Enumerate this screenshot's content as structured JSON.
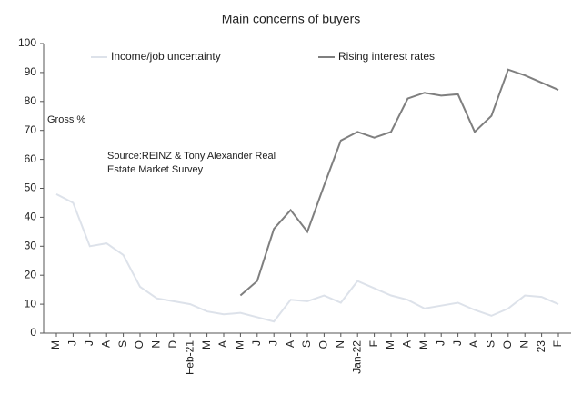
{
  "chart_data": {
    "type": "line",
    "title": "Main concerns of buyers",
    "categories": [
      "M",
      "J",
      "J",
      "A",
      "S",
      "O",
      "N",
      "D",
      "Feb-21",
      "M",
      "A",
      "M",
      "J",
      "J",
      "A",
      "S",
      "O",
      "N",
      "Jan-22",
      "F",
      "M",
      "A",
      "M",
      "J",
      "J",
      "A",
      "S",
      "O",
      "N",
      "23",
      "F"
    ],
    "series": [
      {
        "name": "Income/job uncertainty",
        "color": "#dde2ea",
        "values": [
          48,
          45,
          30,
          31,
          27,
          16,
          12,
          11,
          10,
          7.5,
          6.5,
          7,
          5.5,
          4,
          11.5,
          11,
          13,
          10.5,
          18,
          15.5,
          13,
          11.5,
          8.5,
          9.5,
          10.5,
          8,
          6,
          8.5,
          13,
          12.5,
          10
        ]
      },
      {
        "name": "Rising interest rates",
        "color": "#7f7f7f",
        "values": [
          null,
          null,
          null,
          null,
          null,
          null,
          null,
          null,
          null,
          null,
          null,
          13,
          18,
          36,
          42.5,
          35,
          51,
          66.5,
          69.5,
          67.5,
          69.5,
          81,
          83,
          82,
          82.5,
          69.5,
          75,
          91,
          89,
          86.5,
          84
        ]
      }
    ],
    "ylim": [
      0,
      100
    ],
    "yticks": [
      0,
      10,
      20,
      30,
      40,
      50,
      60,
      70,
      80,
      90,
      100
    ],
    "y_label": "Gross %",
    "annotation": [
      "Source:REINZ & Tony Alexander Real",
      "Estate Market Survey"
    ]
  }
}
